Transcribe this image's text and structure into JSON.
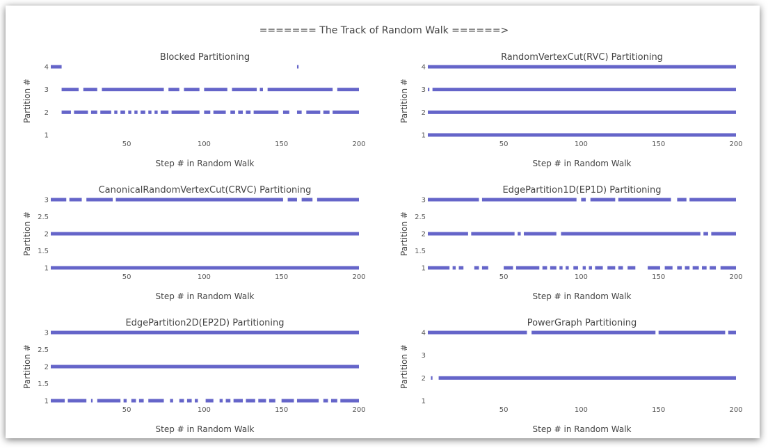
{
  "title": "======= The Track of Random Walk ======>",
  "colors": {
    "segment": "#6565c9",
    "text": "#444444",
    "tick": "#555555"
  },
  "chart_data": [
    {
      "type": "scatter",
      "title": "Blocked Partitioning",
      "xlabel": "Step # in Random Walk",
      "ylabel": "Partition #",
      "xlim": [
        1,
        200
      ],
      "ylim": [
        1,
        4
      ],
      "xticks": [
        "50",
        "100",
        "150",
        "200"
      ],
      "yticks": [
        {
          "v": 1,
          "label": "1"
        },
        {
          "v": 2,
          "label": "2"
        },
        {
          "v": 3,
          "label": "3"
        },
        {
          "v": 4,
          "label": "4"
        }
      ],
      "series": [
        {
          "y": 4,
          "segments": [
            [
              1,
              8
            ],
            [
              160,
              161
            ]
          ]
        },
        {
          "y": 3,
          "segments": [
            [
              8,
              19
            ],
            [
              22,
              31
            ],
            [
              34,
              74
            ],
            [
              77,
              84
            ],
            [
              87,
              97
            ],
            [
              100,
              115
            ],
            [
              118,
              134
            ],
            [
              136,
              138
            ],
            [
              141,
              183
            ],
            [
              186,
              200
            ]
          ]
        },
        {
          "y": 2,
          "segments": [
            [
              8,
              14
            ],
            [
              16,
              25
            ],
            [
              27,
              31
            ],
            [
              33,
              40
            ],
            [
              42,
              44
            ],
            [
              46,
              49
            ],
            [
              51,
              53
            ],
            [
              55,
              57
            ],
            [
              59,
              62
            ],
            [
              64,
              66
            ],
            [
              68,
              70
            ],
            [
              72,
              77
            ],
            [
              79,
              97
            ],
            [
              100,
              104
            ],
            [
              106,
              114
            ],
            [
              117,
              120
            ],
            [
              122,
              125
            ],
            [
              127,
              130
            ],
            [
              132,
              148
            ],
            [
              151,
              155
            ],
            [
              160,
              163
            ],
            [
              166,
              175
            ],
            [
              177,
              181
            ],
            [
              183,
              200
            ]
          ]
        }
      ]
    },
    {
      "type": "scatter",
      "title": "RandomVertexCut(RVC) Partitioning",
      "xlabel": "Step # in Random Walk",
      "ylabel": "Partition #",
      "xlim": [
        1,
        200
      ],
      "ylim": [
        1,
        4
      ],
      "xticks": [
        "50",
        "100",
        "150",
        "200"
      ],
      "yticks": [
        {
          "v": 1,
          "label": "1"
        },
        {
          "v": 2,
          "label": "2"
        },
        {
          "v": 3,
          "label": "3"
        },
        {
          "v": 4,
          "label": "4"
        }
      ],
      "series": [
        {
          "y": 4,
          "segments": [
            [
              1,
              200
            ]
          ]
        },
        {
          "y": 3,
          "segments": [
            [
              1,
              2
            ],
            [
              4,
              200
            ]
          ]
        },
        {
          "y": 2,
          "segments": [
            [
              1,
              200
            ]
          ]
        },
        {
          "y": 1,
          "segments": [
            [
              1,
              200
            ]
          ]
        }
      ]
    },
    {
      "type": "scatter",
      "title": "CanonicalRandomVertexCut(CRVC) Partitioning",
      "xlabel": "Step # in Random Walk",
      "ylabel": "Partition #",
      "xlim": [
        1,
        200
      ],
      "ylim": [
        1,
        3
      ],
      "xticks": [
        "50",
        "100",
        "150",
        "200"
      ],
      "yticks": [
        {
          "v": 1,
          "label": "1"
        },
        {
          "v": 1.5,
          "label": "1.5"
        },
        {
          "v": 2,
          "label": "2"
        },
        {
          "v": 2.5,
          "label": "2.5"
        },
        {
          "v": 3,
          "label": "3"
        }
      ],
      "series": [
        {
          "y": 3,
          "segments": [
            [
              1,
              11
            ],
            [
              13,
              21
            ],
            [
              24,
              41
            ],
            [
              43,
              151
            ],
            [
              154,
              160
            ],
            [
              163,
              170
            ],
            [
              173,
              200
            ]
          ]
        },
        {
          "y": 2,
          "segments": [
            [
              1,
              200
            ]
          ]
        },
        {
          "y": 1,
          "segments": [
            [
              1,
              200
            ]
          ]
        }
      ]
    },
    {
      "type": "scatter",
      "title": "EdgePartition1D(EP1D) Partitioning",
      "xlabel": "Step # in Random Walk",
      "ylabel": "Partition #",
      "xlim": [
        1,
        200
      ],
      "ylim": [
        1,
        3
      ],
      "xticks": [
        "50",
        "100",
        "150",
        "200"
      ],
      "yticks": [
        {
          "v": 1,
          "label": "1"
        },
        {
          "v": 1.5,
          "label": "1.5"
        },
        {
          "v": 2,
          "label": "2"
        },
        {
          "v": 2.5,
          "label": "2.5"
        },
        {
          "v": 3,
          "label": "3"
        }
      ],
      "series": [
        {
          "y": 3,
          "segments": [
            [
              1,
              34
            ],
            [
              36,
              97
            ],
            [
              100,
              103
            ],
            [
              106,
              122
            ],
            [
              124,
              158
            ],
            [
              162,
              168
            ],
            [
              170,
              200
            ]
          ]
        },
        {
          "y": 2,
          "segments": [
            [
              1,
              27
            ],
            [
              29,
              57
            ],
            [
              59,
              61
            ],
            [
              63,
              84
            ],
            [
              87,
              177
            ],
            [
              179,
              182
            ],
            [
              184,
              200
            ]
          ]
        },
        {
          "y": 1,
          "segments": [
            [
              1,
              15
            ],
            [
              17,
              19
            ],
            [
              21,
              24
            ],
            [
              31,
              34
            ],
            [
              36,
              40
            ],
            [
              50,
              56
            ],
            [
              58,
              73
            ],
            [
              75,
              78
            ],
            [
              80,
              84
            ],
            [
              86,
              88
            ],
            [
              90,
              92
            ],
            [
              95,
              98
            ],
            [
              101,
              103
            ],
            [
              105,
              107
            ],
            [
              109,
              114
            ],
            [
              117,
              122
            ],
            [
              124,
              127
            ],
            [
              130,
              135
            ],
            [
              143,
              151
            ],
            [
              154,
              159
            ],
            [
              162,
              165
            ],
            [
              167,
              170
            ],
            [
              172,
              176
            ],
            [
              178,
              181
            ],
            [
              183,
              187
            ],
            [
              190,
              200
            ]
          ]
        }
      ]
    },
    {
      "type": "scatter",
      "title": "EdgePartition2D(EP2D) Partitioning",
      "xlabel": "Step # in Random Walk",
      "ylabel": "Partition #",
      "xlim": [
        1,
        200
      ],
      "ylim": [
        1,
        3
      ],
      "xticks": [
        "50",
        "100",
        "150",
        "200"
      ],
      "yticks": [
        {
          "v": 1,
          "label": "1"
        },
        {
          "v": 1.5,
          "label": "1.5"
        },
        {
          "v": 2,
          "label": "2"
        },
        {
          "v": 2.5,
          "label": "2.5"
        },
        {
          "v": 3,
          "label": "3"
        }
      ],
      "series": [
        {
          "y": 3,
          "segments": [
            [
              1,
              200
            ]
          ]
        },
        {
          "y": 2,
          "segments": [
            [
              1,
              200
            ]
          ]
        },
        {
          "y": 1,
          "segments": [
            [
              1,
              10
            ],
            [
              12,
              24
            ],
            [
              27,
              28
            ],
            [
              31,
              46
            ],
            [
              48,
              50
            ],
            [
              53,
              56
            ],
            [
              58,
              61
            ],
            [
              64,
              74
            ],
            [
              78,
              80
            ],
            [
              84,
              87
            ],
            [
              89,
              92
            ],
            [
              94,
              96
            ],
            [
              101,
              106
            ],
            [
              110,
              112
            ],
            [
              114,
              117
            ],
            [
              119,
              125
            ],
            [
              127,
              133
            ],
            [
              135,
              140
            ],
            [
              142,
              146
            ],
            [
              150,
              158
            ],
            [
              160,
              174
            ],
            [
              177,
              180
            ],
            [
              182,
              186
            ],
            [
              188,
              200
            ]
          ]
        }
      ]
    },
    {
      "type": "scatter",
      "title": "PowerGraph Partitioning",
      "xlabel": "Step # in Random Walk",
      "ylabel": "Partition #",
      "xlim": [
        1,
        200
      ],
      "ylim": [
        1,
        4
      ],
      "xticks": [
        "50",
        "100",
        "150",
        "200"
      ],
      "yticks": [
        {
          "v": 1,
          "label": "1"
        },
        {
          "v": 2,
          "label": "2"
        },
        {
          "v": 3,
          "label": "3"
        },
        {
          "v": 4,
          "label": "4"
        }
      ],
      "series": [
        {
          "y": 4,
          "segments": [
            [
              1,
              65
            ],
            [
              68,
              148
            ],
            [
              150,
              193
            ],
            [
              195,
              200
            ]
          ]
        },
        {
          "y": 2,
          "segments": [
            [
              3,
              4
            ],
            [
              8,
              200
            ]
          ]
        }
      ]
    }
  ]
}
